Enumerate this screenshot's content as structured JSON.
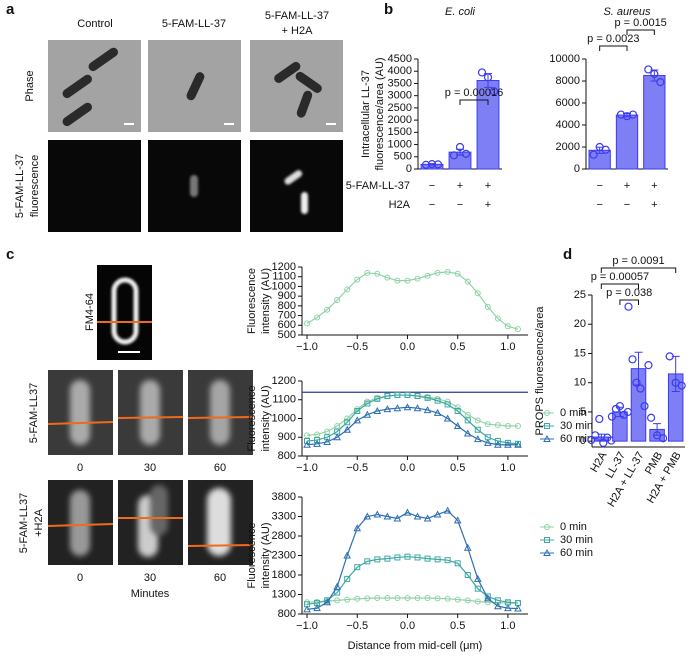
{
  "panel_labels": [
    "a",
    "b",
    "c",
    "d"
  ],
  "panel_a": {
    "column_headers": [
      [
        "Control"
      ],
      [
        "5-FAM-LL-37"
      ],
      [
        "5-FAM-LL-37",
        "+ H2A"
      ]
    ],
    "row_labels": [
      [
        "Phase"
      ],
      [
        "5-FAM-LL-37",
        "fluorescence"
      ]
    ]
  },
  "panel_b_table": {
    "row_labels": [
      "5-FAM-LL-37",
      "H2A"
    ],
    "cells": [
      [
        "−",
        "+",
        "+",
        "−",
        "+",
        "+"
      ],
      [
        "−",
        "−",
        "+",
        "−",
        "−",
        "+"
      ]
    ]
  },
  "panel_c": {
    "fm_label": "FM4-64",
    "row_labels": [
      [
        "5-FAM-LL37"
      ],
      [
        "5-FAM-LL37",
        "+H2A"
      ]
    ],
    "times": [
      "0",
      "30",
      "60"
    ],
    "time_axis": "Minutes"
  },
  "chart_data": [
    {
      "type": "bar",
      "title": "E. coli",
      "ylabel": [
        "Intracellular LL-37",
        "fluorescence/area (AU)"
      ],
      "categories": [
        null,
        null,
        null
      ],
      "values": [
        190,
        690,
        3620
      ],
      "errors": [
        30,
        120,
        280
      ],
      "points": [
        [
          170,
          200,
          190
        ],
        [
          560,
          900,
          620
        ],
        [
          3950,
          3750,
          3180
        ]
      ],
      "color": "#7f7ff5",
      "edge_color": "#3b3bf0",
      "ylim": [
        0,
        4500
      ],
      "yticks": [
        0,
        500,
        1000,
        1500,
        2000,
        2500,
        3000,
        3500,
        4000,
        4500
      ],
      "annotations": [
        "p = 0.00016"
      ]
    },
    {
      "type": "bar",
      "title": "S. aureus",
      "categories": [
        null,
        null,
        null
      ],
      "values": [
        1700,
        4900,
        8500
      ],
      "errors": [
        280,
        150,
        500
      ],
      "points": [
        [
          1300,
          2000,
          1750
        ],
        [
          4950,
          4800,
          4950
        ],
        [
          9050,
          8650,
          7900
        ]
      ],
      "color": "#7f7ff5",
      "edge_color": "#3b3bf0",
      "ylim": [
        0,
        10000
      ],
      "yticks": [
        0,
        2000,
        4000,
        6000,
        8000,
        10000
      ],
      "annotations": [
        "p = 0.0023",
        "p = 0.0015"
      ]
    },
    {
      "type": "line",
      "ylabel": [
        "Fluorescence",
        "intensity (AU)"
      ],
      "x": [
        -1.0,
        -0.9,
        -0.8,
        -0.7,
        -0.6,
        -0.5,
        -0.4,
        -0.3,
        -0.2,
        -0.1,
        0.0,
        0.1,
        0.2,
        0.3,
        0.4,
        0.5,
        0.6,
        0.7,
        0.8,
        0.9,
        1.0,
        1.1
      ],
      "series": [
        {
          "color": "#8fd3a6",
          "marker": "circle",
          "values": [
            620,
            680,
            760,
            860,
            970,
            1070,
            1140,
            1130,
            1090,
            1060,
            1060,
            1080,
            1110,
            1140,
            1150,
            1130,
            1050,
            930,
            790,
            670,
            590,
            560
          ]
        }
      ],
      "xlim": [
        -1.05,
        1.2
      ],
      "xticks": [
        {
          "value": -1.0,
          "label": "−1.0"
        },
        {
          "value": -0.5,
          "label": "−0.5"
        },
        {
          "value": 0.0,
          "label": "0.0"
        },
        {
          "value": 0.5,
          "label": "0.5"
        },
        {
          "value": 1.0,
          "label": "1.0"
        }
      ],
      "ylim": [
        500,
        1200
      ],
      "yticks": [
        500,
        600,
        700,
        800,
        900,
        1000,
        1100,
        1200
      ]
    },
    {
      "type": "line",
      "ylabel": [
        "Fluorescence",
        "intensity (AU)"
      ],
      "x": [
        -1.0,
        -0.9,
        -0.8,
        -0.7,
        -0.6,
        -0.5,
        -0.4,
        -0.3,
        -0.2,
        -0.1,
        0.0,
        0.1,
        0.2,
        0.3,
        0.4,
        0.5,
        0.6,
        0.7,
        0.8,
        0.9,
        1.0,
        1.1
      ],
      "series": [
        {
          "name": "0 min",
          "color": "#8fd3a6",
          "marker": "circle",
          "values": [
            910,
            915,
            930,
            960,
            1000,
            1050,
            1090,
            1110,
            1120,
            1125,
            1125,
            1120,
            1115,
            1105,
            1090,
            1060,
            1020,
            990,
            970,
            965,
            960,
            960
          ]
        },
        {
          "name": "30 min",
          "color": "#3fa8a2",
          "marker": "square",
          "values": [
            880,
            885,
            900,
            930,
            980,
            1040,
            1080,
            1105,
            1120,
            1125,
            1125,
            1120,
            1110,
            1095,
            1075,
            1040,
            990,
            940,
            900,
            880,
            870,
            865
          ]
        },
        {
          "name": "60 min",
          "color": "#2c6fb3",
          "marker": "triangle",
          "values": [
            860,
            865,
            875,
            900,
            940,
            990,
            1020,
            1040,
            1050,
            1055,
            1060,
            1055,
            1045,
            1030,
            1000,
            960,
            920,
            890,
            870,
            860,
            860,
            860
          ]
        }
      ],
      "hlines": [
        1140
      ],
      "hline_color": "#2a3a9e",
      "legend": true,
      "xlim": [
        -1.05,
        1.2
      ],
      "xticks": [
        {
          "value": -1.0,
          "label": "−1.0"
        },
        {
          "value": -0.5,
          "label": "−0.5"
        },
        {
          "value": 0.0,
          "label": "0.0"
        },
        {
          "value": 0.5,
          "label": "0.5"
        },
        {
          "value": 1.0,
          "label": "1.0"
        }
      ],
      "ylim": [
        800,
        1200
      ],
      "yticks": [
        800,
        900,
        1000,
        1100,
        1200
      ]
    },
    {
      "type": "line",
      "ylabel": [
        "Fluorescence",
        "intensity (AU)"
      ],
      "xlabel": "Distance from mid-cell (μm)",
      "x": [
        -1.0,
        -0.9,
        -0.8,
        -0.7,
        -0.6,
        -0.5,
        -0.4,
        -0.3,
        -0.2,
        -0.1,
        0.0,
        0.1,
        0.2,
        0.3,
        0.4,
        0.5,
        0.6,
        0.7,
        0.8,
        0.9,
        1.0,
        1.1
      ],
      "series": [
        {
          "name": "0 min",
          "color": "#8fd3a6",
          "marker": "circle",
          "values": [
            1100,
            1110,
            1130,
            1150,
            1170,
            1190,
            1200,
            1210,
            1210,
            1210,
            1210,
            1210,
            1210,
            1200,
            1190,
            1170,
            1150,
            1120,
            1100,
            1090,
            1080,
            1080
          ]
        },
        {
          "name": "30 min",
          "color": "#3fa8a2",
          "marker": "square",
          "values": [
            1050,
            1080,
            1150,
            1350,
            1700,
            2000,
            2150,
            2200,
            2220,
            2250,
            2270,
            2250,
            2220,
            2200,
            2180,
            2100,
            1800,
            1450,
            1250,
            1150,
            1100,
            1080
          ]
        },
        {
          "name": "60 min",
          "color": "#2c6fb3",
          "marker": "triangle",
          "values": [
            920,
            950,
            1100,
            1500,
            2300,
            3000,
            3300,
            3350,
            3300,
            3250,
            3400,
            3300,
            3250,
            3350,
            3450,
            3200,
            2500,
            1700,
            1200,
            1000,
            950,
            940
          ]
        }
      ],
      "legend": true,
      "xlim": [
        -1.05,
        1.2
      ],
      "xticks": [
        {
          "value": -1.0,
          "label": "−1.0"
        },
        {
          "value": -0.5,
          "label": "−0.5"
        },
        {
          "value": 0.0,
          "label": "0.0"
        },
        {
          "value": 0.5,
          "label": "0.5"
        },
        {
          "value": 1.0,
          "label": "1.0"
        }
      ],
      "ylim": [
        800,
        3800
      ],
      "yticks": [
        800,
        1300,
        1800,
        2300,
        2800,
        3300,
        3800
      ]
    },
    {
      "type": "bar",
      "ylabel": [
        "PROPS fluorescence/area"
      ],
      "categories": [
        "H2A",
        "LL-37",
        "H2A + LL-37",
        "PMB",
        "H2A + PMB"
      ],
      "values": [
        0.7,
        5.0,
        12.4,
        2.0,
        11.5
      ],
      "errors": [
        0.5,
        0.8,
        2.8,
        1.0,
        3.0
      ],
      "points": [
        [
          0.2,
          1.0,
          3.8,
          -0.3,
          0.6,
          0.1
        ],
        [
          4.2,
          5.5,
          6.0,
          4.5,
          5.0
        ],
        [
          23,
          14,
          10,
          9,
          6,
          13
        ],
        [
          4.0,
          1.0,
          0.5
        ],
        [
          14.5,
          10,
          9.5
        ]
      ],
      "color": "#7f7ff5",
      "edge_color": "#3b3bf0",
      "ylim": [
        -1,
        25
      ],
      "yticks": [
        0,
        5,
        10,
        15,
        20,
        25
      ],
      "annotations": [
        "p = 0.0091",
        "p = 0.00057",
        "p = 0.038"
      ]
    }
  ]
}
